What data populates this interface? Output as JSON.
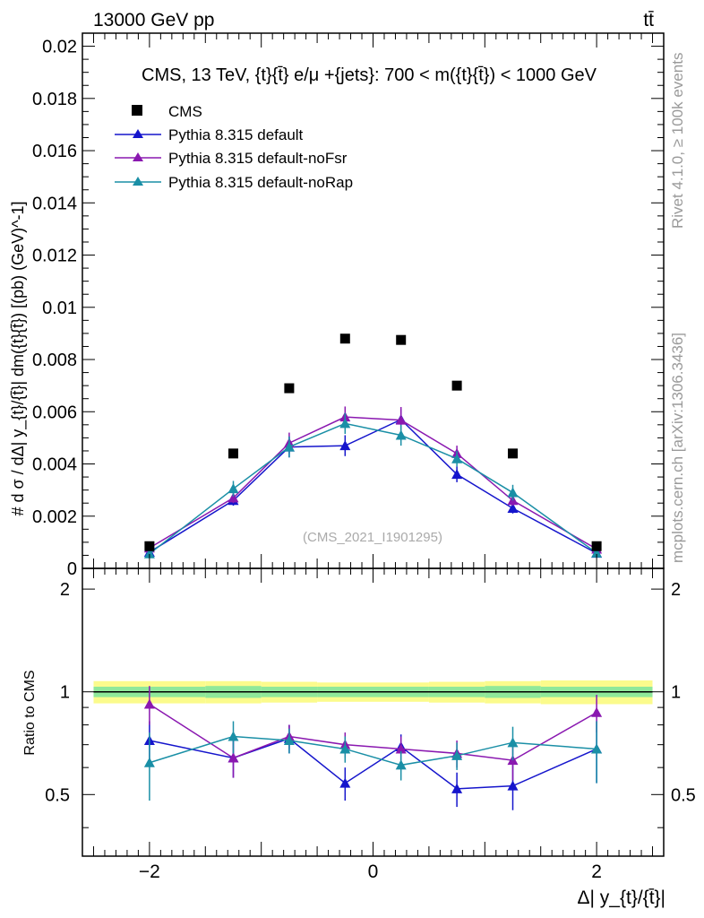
{
  "header": {
    "left": "13000 GeV pp",
    "right": "tt̄"
  },
  "side": {
    "rivet": "Rivet 4.1.0, ≥ 100k events",
    "mcplots": "mcplots.cern.ch [arXiv:1306.3436]"
  },
  "chart_data": {
    "type": "scatter",
    "title": "CMS, 13 TeV, {t}{t̄} e/μ +{jets}: 700 < m({t}{t̄}) < 1000 GeV",
    "watermark": "(CMS_2021_I1901295)",
    "xlabel": "Δ| y_{t}/{t̄}|",
    "ylabel": "# d σ / dΔ| y_{t}/{t̄}| dm({t}{t̄}) [(pb) (GeV)^-1]",
    "ratio_ylabel": "Ratio to CMS",
    "xlim": [
      -2.6,
      2.6
    ],
    "ylim": [
      0,
      0.0205
    ],
    "ratio_ylim": [
      0.33,
      2.3
    ],
    "x_ticks": [
      "−2",
      "0",
      "2"
    ],
    "y_ticks": [
      "0",
      "0.002",
      "0.004",
      "0.006",
      "0.008",
      "0.01",
      "0.012",
      "0.014",
      "0.016",
      "0.018",
      "0.02"
    ],
    "ratio_ticks": [
      "0.5",
      "1",
      "2"
    ],
    "x": [
      -2.0,
      -1.25,
      -0.75,
      -0.25,
      0.25,
      0.75,
      1.25,
      2.0
    ],
    "bin_edges": [
      -2.5,
      -1.5,
      -1.0,
      -0.5,
      0.0,
      0.5,
      1.0,
      1.5,
      2.5
    ],
    "data": {
      "name": "CMS",
      "color": "#000000",
      "values": [
        0.00085,
        0.0044,
        0.0069,
        0.0088,
        0.00875,
        0.007,
        0.0044,
        0.00085
      ],
      "band_inner": [
        0.035,
        0.04,
        0.035,
        0.035,
        0.035,
        0.035,
        0.04,
        0.035
      ],
      "band_outer": [
        0.075,
        0.075,
        0.07,
        0.065,
        0.065,
        0.07,
        0.075,
        0.08
      ]
    },
    "series": [
      {
        "name": "Pythia 8.315 default",
        "color": "#1515cc",
        "values": [
          0.00062,
          0.0026,
          0.00465,
          0.0047,
          0.0057,
          0.0036,
          0.0023,
          0.00058
        ],
        "errors": [
          0.0001,
          0.0002,
          0.0004,
          0.0004,
          0.0004,
          0.0003,
          0.0002,
          0.0001
        ],
        "ratio": [
          0.72,
          0.64,
          0.73,
          0.54,
          0.69,
          0.52,
          0.53,
          0.68
        ],
        "ratio_err": [
          0.1,
          0.08,
          0.07,
          0.06,
          0.06,
          0.06,
          0.08,
          0.14
        ]
      },
      {
        "name": "Pythia 8.315 default-noFsr",
        "color": "#8a18b0",
        "values": [
          0.00078,
          0.0027,
          0.0048,
          0.0058,
          0.00568,
          0.0044,
          0.0026,
          0.00074
        ],
        "errors": [
          0.0001,
          0.0002,
          0.0004,
          0.0004,
          0.0005,
          0.0003,
          0.0002,
          0.0001
        ],
        "ratio": [
          0.92,
          0.64,
          0.74,
          0.7,
          0.68,
          0.66,
          0.63,
          0.87
        ],
        "ratio_err": [
          0.12,
          0.08,
          0.06,
          0.06,
          0.06,
          0.06,
          0.08,
          0.11
        ]
      },
      {
        "name": "Pythia 8.315 default-noRap",
        "color": "#1a8fa6",
        "values": [
          0.00056,
          0.00305,
          0.00465,
          0.00555,
          0.0051,
          0.0042,
          0.0029,
          0.00059
        ],
        "errors": [
          0.0001,
          0.0003,
          0.0004,
          0.0004,
          0.0004,
          0.0003,
          0.0003,
          0.0001
        ],
        "ratio": [
          0.62,
          0.74,
          0.72,
          0.68,
          0.61,
          0.65,
          0.71,
          0.68
        ],
        "ratio_err": [
          0.14,
          0.08,
          0.06,
          0.06,
          0.06,
          0.06,
          0.08,
          0.14
        ]
      }
    ]
  }
}
